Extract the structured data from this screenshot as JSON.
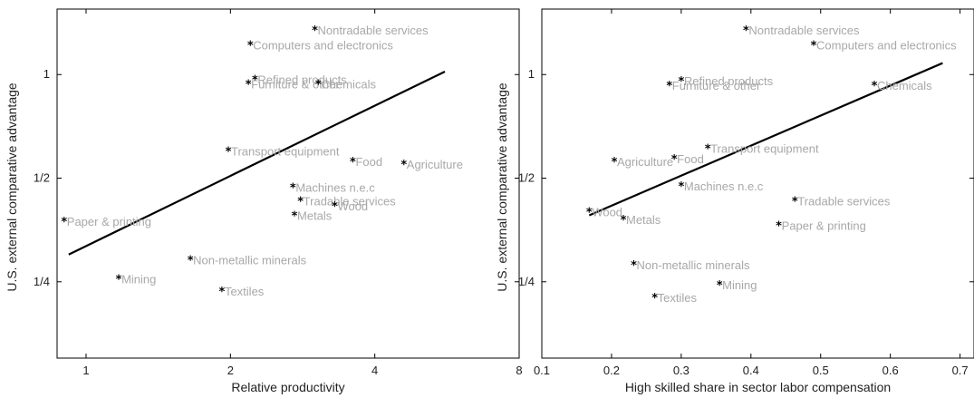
{
  "chart_data": [
    {
      "type": "scatter",
      "title": "",
      "xlabel": "Relative productivity",
      "ylabel": "U.S. external comparative advantage",
      "x_scale": "log2",
      "y_scale": "log2",
      "xlim": [
        0.87,
        8
      ],
      "ylim": [
        0.15,
        1.55
      ],
      "xticks": [
        1,
        2,
        4,
        8
      ],
      "xtick_labels": [
        "1",
        "2",
        "4",
        "8"
      ],
      "yticks": [
        0.25,
        0.5,
        1
      ],
      "ytick_labels": [
        "1/4",
        "1/2",
        "1"
      ],
      "grid": false,
      "points": [
        {
          "label": "Nontradable services",
          "x": 3.0,
          "y": 1.35
        },
        {
          "label": "Computers and electronics",
          "x": 2.2,
          "y": 1.22
        },
        {
          "label": "Refined products",
          "x": 2.25,
          "y": 0.97
        },
        {
          "label": "Furniture & other",
          "x": 2.18,
          "y": 0.94
        },
        {
          "label": "Chemicals",
          "x": 3.05,
          "y": 0.94
        },
        {
          "label": "Transport equipment",
          "x": 1.98,
          "y": 0.6
        },
        {
          "label": "Food",
          "x": 3.6,
          "y": 0.56
        },
        {
          "label": "Agriculture",
          "x": 4.6,
          "y": 0.55
        },
        {
          "label": "Machines n.e.c",
          "x": 2.7,
          "y": 0.47
        },
        {
          "label": "Tradable services",
          "x": 2.8,
          "y": 0.43
        },
        {
          "label": "Wood",
          "x": 3.3,
          "y": 0.415
        },
        {
          "label": "Metals",
          "x": 2.72,
          "y": 0.39
        },
        {
          "label": "Paper & printing",
          "x": 0.9,
          "y": 0.375
        },
        {
          "label": "Non-metallic minerals",
          "x": 1.65,
          "y": 0.29
        },
        {
          "label": "Mining",
          "x": 1.17,
          "y": 0.255
        },
        {
          "label": "Textiles",
          "x": 1.92,
          "y": 0.235
        }
      ],
      "fit_line": {
        "x": [
          0.92,
          5.6
        ],
        "y": [
          0.3,
          1.02
        ]
      }
    },
    {
      "type": "scatter",
      "title": "",
      "xlabel": "High skilled share in sector labor compensation",
      "ylabel": "U.S. external comparative advantage",
      "x_scale": "linear",
      "y_scale": "log2",
      "xlim": [
        0.1,
        0.72
      ],
      "ylim": [
        0.15,
        1.55
      ],
      "xticks": [
        0.1,
        0.2,
        0.3,
        0.4,
        0.5,
        0.6,
        0.7
      ],
      "xtick_labels": [
        "0.1",
        "0.2",
        "0.3",
        "0.4",
        "0.5",
        "0.6",
        "0.7"
      ],
      "yticks": [
        0.25,
        0.5,
        1
      ],
      "ytick_labels": [
        "1/4",
        "1/2",
        "1"
      ],
      "grid": false,
      "points": [
        {
          "label": "Nontradable services",
          "x": 0.393,
          "y": 1.35
        },
        {
          "label": "Computers and electronics",
          "x": 0.49,
          "y": 1.22
        },
        {
          "label": "Refined products",
          "x": 0.3,
          "y": 0.96
        },
        {
          "label": "Furniture & other",
          "x": 0.283,
          "y": 0.93
        },
        {
          "label": "Chemicals",
          "x": 0.577,
          "y": 0.93
        },
        {
          "label": "Transport equipment",
          "x": 0.338,
          "y": 0.61
        },
        {
          "label": "Agriculture",
          "x": 0.204,
          "y": 0.56
        },
        {
          "label": "Food",
          "x": 0.29,
          "y": 0.57
        },
        {
          "label": "Machines n.e.c",
          "x": 0.3,
          "y": 0.475
        },
        {
          "label": "Wood",
          "x": 0.168,
          "y": 0.4
        },
        {
          "label": "Tradable services",
          "x": 0.463,
          "y": 0.43
        },
        {
          "label": "Metals",
          "x": 0.217,
          "y": 0.38
        },
        {
          "label": "Paper & printing",
          "x": 0.44,
          "y": 0.365
        },
        {
          "label": "Non-metallic minerals",
          "x": 0.232,
          "y": 0.28
        },
        {
          "label": "Mining",
          "x": 0.355,
          "y": 0.245
        },
        {
          "label": "Textiles",
          "x": 0.262,
          "y": 0.225
        }
      ],
      "fit_line": {
        "x": [
          0.168,
          0.675
        ],
        "y": [
          0.39,
          1.08
        ]
      }
    }
  ]
}
